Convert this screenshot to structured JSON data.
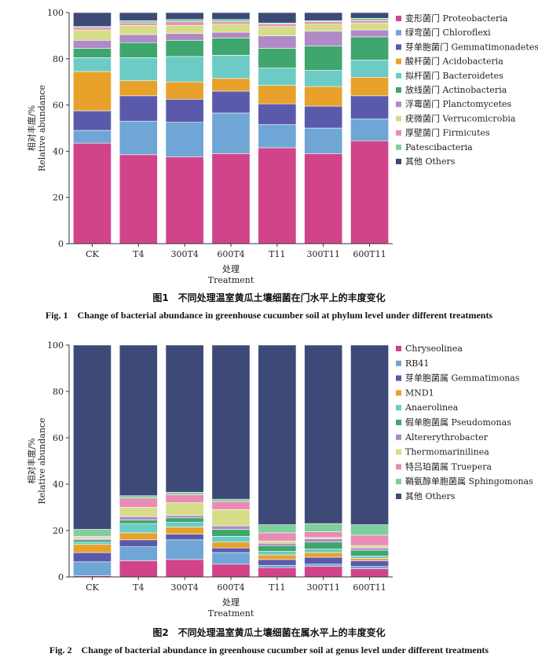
{
  "figures": [
    {
      "caption_cn": "图1　不同处理温室黄瓜土壤细菌在门水平上的丰度变化",
      "caption_en": "Fig. 1　Change of bacterial abundance in greenhouse cucumber soil at phylum level under different treatments"
    },
    {
      "caption_cn": "图2　不同处理温室黄瓜土壤细菌在属水平上的丰度变化",
      "caption_en": "Fig. 2　Change of bacterial abundance in greenhouse cucumber soil at genus level under different treatments"
    }
  ],
  "chart_data": [
    {
      "type": "bar",
      "stacked": true,
      "xlabel_cn": "处理",
      "xlabel_en": "Treatment",
      "ylabel_cn": "相对丰度/%",
      "ylabel_en": "Relative abundance",
      "ylim": [
        0,
        100
      ],
      "yticks": [
        0,
        20,
        40,
        60,
        80,
        100
      ],
      "legend_position": "right",
      "categories": [
        "CK",
        "T4",
        "300T4",
        "600T4",
        "T11",
        "300T11",
        "600T11"
      ],
      "series": [
        {
          "name": "变形菌门 Proteobacteria",
          "color": "#d1448a",
          "values": [
            43.5,
            38.5,
            37.5,
            39.0,
            41.5,
            39.0,
            44.5
          ]
        },
        {
          "name": "绿弯菌门 Chloroflexi",
          "color": "#6fa6d6",
          "values": [
            5.5,
            14.5,
            15.0,
            17.5,
            10.0,
            11.0,
            9.5
          ]
        },
        {
          "name": "芽单胞菌门 Gemmatimonadetes",
          "color": "#5b5aaa",
          "values": [
            8.5,
            11.0,
            10.0,
            9.5,
            9.0,
            9.5,
            10.0
          ]
        },
        {
          "name": "酸杆菌门 Acidobacteria",
          "color": "#e8a12a",
          "values": [
            17.0,
            6.5,
            7.5,
            5.5,
            8.0,
            8.5,
            8.0
          ]
        },
        {
          "name": "拟杆菌门 Bacteroidetes",
          "color": "#6ccbc5",
          "values": [
            6.0,
            10.0,
            11.0,
            10.0,
            7.5,
            7.0,
            7.5
          ]
        },
        {
          "name": "放线菌门 Actinobacteria",
          "color": "#3fa66d",
          "values": [
            4.0,
            6.5,
            7.0,
            7.5,
            8.5,
            10.5,
            10.0
          ]
        },
        {
          "name": "浮霉菌门 Planctomycetes",
          "color": "#b08ac6",
          "values": [
            3.5,
            3.5,
            3.0,
            2.5,
            5.5,
            6.5,
            3.0
          ]
        },
        {
          "name": "疣微菌门 Verrucomicrobia",
          "color": "#d5dd88",
          "values": [
            4.5,
            4.0,
            3.5,
            3.5,
            4.0,
            3.0,
            3.0
          ]
        },
        {
          "name": "厚壁菌门 Firmicutes",
          "color": "#e98bb4",
          "values": [
            1.0,
            1.0,
            1.5,
            1.0,
            1.0,
            1.0,
            1.0
          ]
        },
        {
          "name": "Patescibacteria",
          "color": "#7fcf9b",
          "values": [
            0.5,
            1.0,
            1.0,
            1.0,
            0.5,
            0.5,
            1.0
          ]
        },
        {
          "name": "其他 Others",
          "color": "#3d4a78",
          "values": [
            6.0,
            3.5,
            3.0,
            3.0,
            4.5,
            3.5,
            2.5
          ]
        }
      ]
    },
    {
      "type": "bar",
      "stacked": true,
      "xlabel_cn": "处理",
      "xlabel_en": "Treatment",
      "ylabel_cn": "相对丰度/%",
      "ylabel_en": "Relative abundance",
      "ylim": [
        0,
        100
      ],
      "yticks": [
        0,
        20,
        40,
        60,
        80,
        100
      ],
      "legend_position": "right",
      "categories": [
        "CK",
        "T4",
        "300T4",
        "600T4",
        "T11",
        "300T11",
        "600T11"
      ],
      "series": [
        {
          "name": "Chryseolinea",
          "color": "#d1448a",
          "values": [
            0.5,
            7.0,
            7.5,
            5.5,
            4.0,
            4.5,
            3.5
          ]
        },
        {
          "name": "RB41",
          "color": "#6fa6d6",
          "values": [
            6.0,
            6.0,
            8.5,
            5.0,
            1.0,
            1.0,
            1.0
          ]
        },
        {
          "name": "芽单胞菌属 Gemmatimonas",
          "color": "#5b5aaa",
          "values": [
            4.0,
            3.0,
            2.5,
            2.0,
            2.5,
            3.0,
            2.5
          ]
        },
        {
          "name": "MND1",
          "color": "#e8a12a",
          "values": [
            3.5,
            3.0,
            3.0,
            2.5,
            2.0,
            2.0,
            1.0
          ]
        },
        {
          "name": "Anaerolinea",
          "color": "#6ccbc5",
          "values": [
            1.0,
            4.0,
            2.0,
            2.5,
            1.5,
            1.5,
            1.0
          ]
        },
        {
          "name": "假单胞菌属 Pseudomonas",
          "color": "#3fa66d",
          "values": [
            1.0,
            1.5,
            2.0,
            3.0,
            2.5,
            3.0,
            2.5
          ]
        },
        {
          "name": "Altererythrobacter",
          "color": "#b08ac6",
          "values": [
            0.5,
            1.5,
            1.0,
            1.5,
            1.0,
            1.5,
            1.0
          ]
        },
        {
          "name": "Thermomarinilinea",
          "color": "#d5dd88",
          "values": [
            0.5,
            4.0,
            5.5,
            7.0,
            1.0,
            0.5,
            1.0
          ]
        },
        {
          "name": "特吕珀菌属 Truepera",
          "color": "#e98bb4",
          "values": [
            0.5,
            4.0,
            3.5,
            3.5,
            3.5,
            2.5,
            4.5
          ]
        },
        {
          "name": "鞘氨醇单胞菌属 Sphingomonas",
          "color": "#7fcf9b",
          "values": [
            3.0,
            1.0,
            1.0,
            1.0,
            3.5,
            3.5,
            4.5
          ]
        },
        {
          "name": "其他 Others",
          "color": "#3d4a78",
          "values": [
            79.5,
            65.0,
            63.5,
            66.5,
            77.5,
            77.0,
            77.5
          ]
        }
      ]
    }
  ]
}
